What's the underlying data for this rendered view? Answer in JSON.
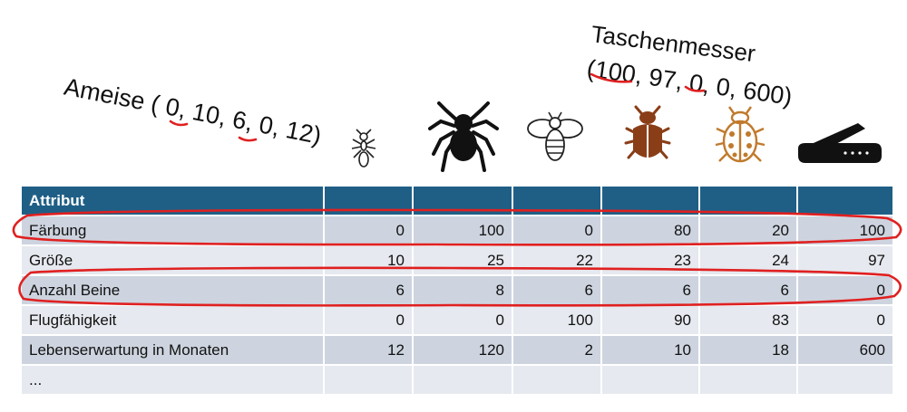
{
  "annotations": {
    "ameise": "Ameise ( 0, 10, 6, 0, 12)",
    "taschenmesser_title": "Taschenmesser",
    "taschenmesser_vector": "(100, 97, 0, 0, 600)"
  },
  "table": {
    "header": [
      "Attribut",
      "",
      "",
      "",
      "",
      "",
      ""
    ],
    "rows": [
      [
        "Färbung",
        "0",
        "100",
        "0",
        "80",
        "20",
        "100"
      ],
      [
        "Größe",
        "10",
        "25",
        "22",
        "23",
        "24",
        "97"
      ],
      [
        "Anzahl Beine",
        "6",
        "8",
        "6",
        "6",
        "6",
        "0"
      ],
      [
        "Flugfähigkeit",
        "0",
        "0",
        "100",
        "90",
        "83",
        "0"
      ],
      [
        "Lebenserwartung in Monaten",
        "12",
        "120",
        "2",
        "10",
        "18",
        "600"
      ],
      [
        "...",
        "",
        "",
        "",
        "",
        "",
        ""
      ]
    ]
  },
  "icons": [
    "ant-icon",
    "spider-icon",
    "bee-icon",
    "beetle-icon",
    "ladybug-icon",
    "pocket-knife-icon"
  ],
  "colors": {
    "header": "#1f5f86",
    "row_odd": "#cdd4df",
    "row_even": "#e6e9ef",
    "highlight": "#e02020",
    "beetle": "#8a3e18",
    "ladybug": "#c07a2c"
  }
}
